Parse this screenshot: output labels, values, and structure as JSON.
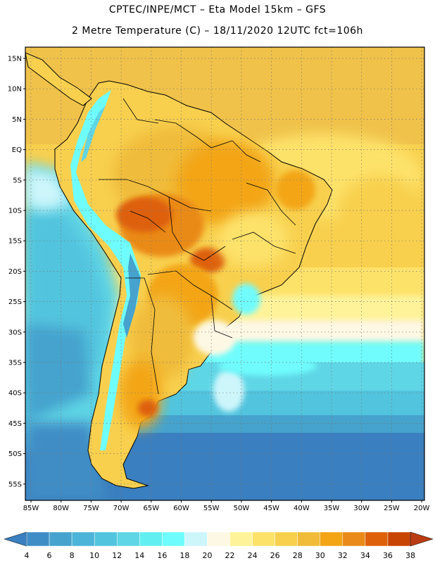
{
  "header": {
    "title_line1": "CPTEC/INPE/MCT –  Eta Model 15km – GFS",
    "title_line2": "2 Metre Temperature (C) – 18/11/2020 12UTC fct=106h"
  },
  "map": {
    "lat_labels": [
      "15N",
      "10N",
      "5N",
      "EQ",
      "5S",
      "10S",
      "15S",
      "20S",
      "25S",
      "30S",
      "35S",
      "40S",
      "45S",
      "50S",
      "55S"
    ],
    "lon_labels": [
      "85W",
      "80W",
      "75W",
      "70W",
      "65W",
      "60W",
      "55W",
      "50W",
      "45W",
      "40W",
      "35W",
      "30W",
      "25W",
      "20W"
    ],
    "grid": "dotted",
    "region": "South America"
  },
  "colorbar": {
    "labels": [
      "4",
      "6",
      "8",
      "10",
      "12",
      "14",
      "16",
      "18",
      "20",
      "22",
      "24",
      "26",
      "28",
      "30",
      "32",
      "34",
      "36",
      "38"
    ],
    "colors": [
      "#3a7fbf",
      "#3f8dc6",
      "#45a3cd",
      "#4cb4d8",
      "#52c4de",
      "#5fd6e6",
      "#62eff2",
      "#6ffcfc",
      "#cdf6fb",
      "#fdf8e4",
      "#fff39a",
      "#fde26a",
      "#f8d04e",
      "#f0bc3a",
      "#f3a516",
      "#ea8a18",
      "#de6008",
      "#c84404",
      "#b93c12"
    ]
  }
}
